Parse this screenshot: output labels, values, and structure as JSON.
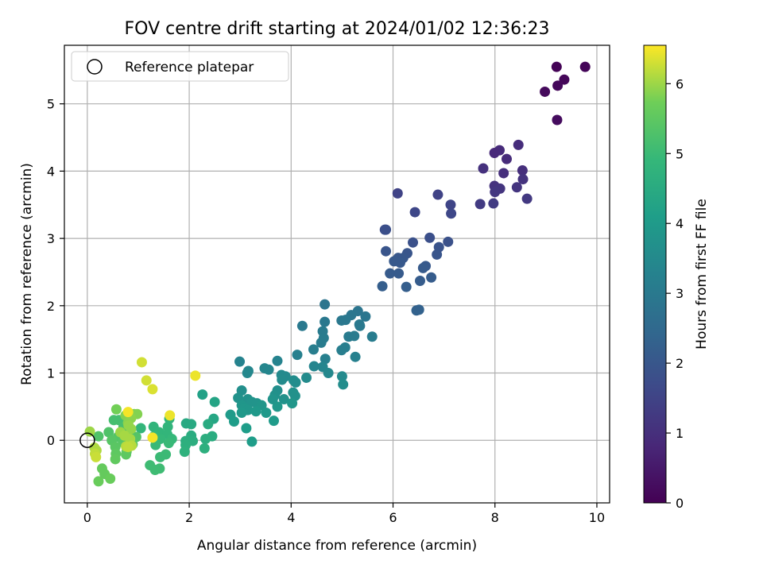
{
  "chart_data": {
    "type": "scatter",
    "title": "FOV centre drift starting at 2024/01/02 12:36:23",
    "xlabel": "Angular distance from reference (arcmin)",
    "ylabel": "Rotation from reference (arcmin)",
    "xlim": [
      -0.45,
      10.25
    ],
    "ylim": [
      -0.93,
      5.87
    ],
    "xticks": [
      "0",
      "2",
      "4",
      "6",
      "8",
      "10"
    ],
    "yticks": [
      "0",
      "1",
      "2",
      "3",
      "4",
      "5"
    ],
    "grid": true,
    "legend": {
      "placement": "top-left",
      "entries": [
        "Reference platepar"
      ]
    },
    "reference_point": {
      "x": 0,
      "y": 0
    },
    "colorbar": {
      "label": "Hours from first FF file",
      "range": [
        0,
        6.55
      ],
      "ticks": [
        "0",
        "1",
        "2",
        "3",
        "4",
        "5",
        "6"
      ],
      "colormap": "viridis"
    },
    "points": [
      {
        "x": 9.21,
        "y": 5.55,
        "c": 0.05
      },
      {
        "x": 9.77,
        "y": 5.55,
        "c": 0.08
      },
      {
        "x": 9.36,
        "y": 5.36,
        "c": 0.12
      },
      {
        "x": 9.23,
        "y": 5.27,
        "c": 0.15
      },
      {
        "x": 8.98,
        "y": 5.18,
        "c": 0.18
      },
      {
        "x": 9.22,
        "y": 4.76,
        "c": 0.22
      },
      {
        "x": 8.46,
        "y": 4.39,
        "c": 0.95
      },
      {
        "x": 8.09,
        "y": 4.31,
        "c": 0.9
      },
      {
        "x": 7.99,
        "y": 4.27,
        "c": 0.85
      },
      {
        "x": 8.23,
        "y": 4.18,
        "c": 0.92
      },
      {
        "x": 7.77,
        "y": 4.04,
        "c": 1.05
      },
      {
        "x": 8.54,
        "y": 4.01,
        "c": 1.0
      },
      {
        "x": 8.17,
        "y": 3.97,
        "c": 1.0
      },
      {
        "x": 8.55,
        "y": 3.88,
        "c": 1.1
      },
      {
        "x": 7.99,
        "y": 3.78,
        "c": 1.1
      },
      {
        "x": 8.1,
        "y": 3.74,
        "c": 1.15
      },
      {
        "x": 8.43,
        "y": 3.76,
        "c": 1.15
      },
      {
        "x": 8.0,
        "y": 3.69,
        "c": 1.2
      },
      {
        "x": 8.63,
        "y": 3.59,
        "c": 1.25
      },
      {
        "x": 7.97,
        "y": 3.52,
        "c": 1.3
      },
      {
        "x": 7.71,
        "y": 3.51,
        "c": 1.3
      },
      {
        "x": 6.09,
        "y": 3.67,
        "c": 1.5
      },
      {
        "x": 6.88,
        "y": 3.65,
        "c": 1.5
      },
      {
        "x": 7.13,
        "y": 3.5,
        "c": 1.55
      },
      {
        "x": 6.43,
        "y": 3.39,
        "c": 1.6
      },
      {
        "x": 7.14,
        "y": 3.37,
        "c": 1.6
      },
      {
        "x": 5.84,
        "y": 3.13,
        "c": 1.75
      },
      {
        "x": 5.86,
        "y": 3.13,
        "c": 1.8
      },
      {
        "x": 6.72,
        "y": 3.01,
        "c": 1.8
      },
      {
        "x": 6.39,
        "y": 2.94,
        "c": 1.85
      },
      {
        "x": 7.08,
        "y": 2.95,
        "c": 1.85
      },
      {
        "x": 6.9,
        "y": 2.87,
        "c": 1.9
      },
      {
        "x": 5.86,
        "y": 2.81,
        "c": 1.95
      },
      {
        "x": 6.28,
        "y": 2.78,
        "c": 1.95
      },
      {
        "x": 6.86,
        "y": 2.76,
        "c": 1.95
      },
      {
        "x": 6.1,
        "y": 2.71,
        "c": 2.0
      },
      {
        "x": 6.2,
        "y": 2.71,
        "c": 2.0
      },
      {
        "x": 6.02,
        "y": 2.66,
        "c": 2.05
      },
      {
        "x": 6.14,
        "y": 2.64,
        "c": 2.05
      },
      {
        "x": 6.64,
        "y": 2.59,
        "c": 2.05
      },
      {
        "x": 6.59,
        "y": 2.56,
        "c": 2.1
      },
      {
        "x": 5.94,
        "y": 2.48,
        "c": 2.1
      },
      {
        "x": 6.11,
        "y": 2.48,
        "c": 2.1
      },
      {
        "x": 6.75,
        "y": 2.42,
        "c": 2.15
      },
      {
        "x": 6.53,
        "y": 2.37,
        "c": 2.15
      },
      {
        "x": 5.79,
        "y": 2.29,
        "c": 2.2
      },
      {
        "x": 6.26,
        "y": 2.28,
        "c": 2.2
      },
      {
        "x": 6.46,
        "y": 1.93,
        "c": 2.3
      },
      {
        "x": 6.51,
        "y": 1.94,
        "c": 2.3
      },
      {
        "x": 4.66,
        "y": 2.02,
        "c": 2.85
      },
      {
        "x": 5.31,
        "y": 1.92,
        "c": 2.85
      },
      {
        "x": 5.18,
        "y": 1.86,
        "c": 2.9
      },
      {
        "x": 5.46,
        "y": 1.84,
        "c": 2.9
      },
      {
        "x": 4.99,
        "y": 1.78,
        "c": 2.95
      },
      {
        "x": 4.66,
        "y": 1.76,
        "c": 2.95
      },
      {
        "x": 5.07,
        "y": 1.79,
        "c": 2.95
      },
      {
        "x": 5.34,
        "y": 1.72,
        "c": 3.0
      },
      {
        "x": 5.35,
        "y": 1.7,
        "c": 3.0
      },
      {
        "x": 4.22,
        "y": 1.7,
        "c": 3.0
      },
      {
        "x": 4.62,
        "y": 1.62,
        "c": 3.05
      },
      {
        "x": 5.13,
        "y": 1.54,
        "c": 3.05
      },
      {
        "x": 5.24,
        "y": 1.55,
        "c": 3.05
      },
      {
        "x": 5.59,
        "y": 1.54,
        "c": 3.1
      },
      {
        "x": 4.64,
        "y": 1.52,
        "c": 3.1
      },
      {
        "x": 4.59,
        "y": 1.45,
        "c": 3.1
      },
      {
        "x": 5.06,
        "y": 1.38,
        "c": 3.15
      },
      {
        "x": 4.44,
        "y": 1.35,
        "c": 3.15
      },
      {
        "x": 4.99,
        "y": 1.34,
        "c": 3.15
      },
      {
        "x": 4.12,
        "y": 1.27,
        "c": 3.2
      },
      {
        "x": 5.26,
        "y": 1.24,
        "c": 3.2
      },
      {
        "x": 4.67,
        "y": 1.21,
        "c": 3.2
      },
      {
        "x": 3.73,
        "y": 1.18,
        "c": 3.3
      },
      {
        "x": 2.99,
        "y": 1.17,
        "c": 3.3
      },
      {
        "x": 4.45,
        "y": 1.1,
        "c": 3.35
      },
      {
        "x": 4.62,
        "y": 1.09,
        "c": 3.35
      },
      {
        "x": 3.48,
        "y": 1.07,
        "c": 3.4
      },
      {
        "x": 3.56,
        "y": 1.05,
        "c": 3.4
      },
      {
        "x": 3.16,
        "y": 1.03,
        "c": 3.4
      },
      {
        "x": 3.14,
        "y": 1.0,
        "c": 3.45
      },
      {
        "x": 4.73,
        "y": 1.0,
        "c": 3.45
      },
      {
        "x": 3.81,
        "y": 0.97,
        "c": 3.5
      },
      {
        "x": 3.89,
        "y": 0.95,
        "c": 3.5
      },
      {
        "x": 5.0,
        "y": 0.95,
        "c": 3.5
      },
      {
        "x": 4.3,
        "y": 0.93,
        "c": 3.55
      },
      {
        "x": 3.82,
        "y": 0.9,
        "c": 3.55
      },
      {
        "x": 4.05,
        "y": 0.89,
        "c": 3.6
      },
      {
        "x": 4.09,
        "y": 0.86,
        "c": 3.6
      },
      {
        "x": 5.02,
        "y": 0.83,
        "c": 3.6
      },
      {
        "x": 3.03,
        "y": 0.74,
        "c": 3.65
      },
      {
        "x": 3.73,
        "y": 0.74,
        "c": 3.65
      },
      {
        "x": 4.04,
        "y": 0.71,
        "c": 3.7
      },
      {
        "x": 3.68,
        "y": 0.67,
        "c": 3.7
      },
      {
        "x": 4.08,
        "y": 0.66,
        "c": 3.7
      },
      {
        "x": 2.96,
        "y": 0.63,
        "c": 3.75
      },
      {
        "x": 3.15,
        "y": 0.61,
        "c": 3.75
      },
      {
        "x": 3.86,
        "y": 0.61,
        "c": 3.75
      },
      {
        "x": 3.64,
        "y": 0.61,
        "c": 3.8
      },
      {
        "x": 3.23,
        "y": 0.57,
        "c": 3.8
      },
      {
        "x": 3.33,
        "y": 0.55,
        "c": 3.8
      },
      {
        "x": 4.02,
        "y": 0.55,
        "c": 3.85
      },
      {
        "x": 3.42,
        "y": 0.52,
        "c": 3.85
      },
      {
        "x": 3.03,
        "y": 0.52,
        "c": 3.85
      },
      {
        "x": 3.73,
        "y": 0.5,
        "c": 3.9
      },
      {
        "x": 3.08,
        "y": 0.48,
        "c": 3.9
      },
      {
        "x": 3.15,
        "y": 0.45,
        "c": 3.9
      },
      {
        "x": 3.31,
        "y": 0.43,
        "c": 3.95
      },
      {
        "x": 3.51,
        "y": 0.41,
        "c": 3.95
      },
      {
        "x": 3.03,
        "y": 0.41,
        "c": 3.95
      },
      {
        "x": 2.81,
        "y": 0.38,
        "c": 4.0
      },
      {
        "x": 3.66,
        "y": 0.29,
        "c": 4.0
      },
      {
        "x": 2.88,
        "y": 0.28,
        "c": 4.05
      },
      {
        "x": 3.12,
        "y": 0.18,
        "c": 4.05
      },
      {
        "x": 3.23,
        "y": -0.02,
        "c": 4.05
      },
      {
        "x": 2.26,
        "y": 0.68,
        "c": 4.2
      },
      {
        "x": 2.5,
        "y": 0.57,
        "c": 4.3
      },
      {
        "x": 2.48,
        "y": 0.32,
        "c": 4.35
      },
      {
        "x": 1.94,
        "y": 0.25,
        "c": 4.45
      },
      {
        "x": 2.04,
        "y": 0.24,
        "c": 4.45
      },
      {
        "x": 2.37,
        "y": 0.24,
        "c": 4.5
      },
      {
        "x": 2.04,
        "y": 0.07,
        "c": 4.55
      },
      {
        "x": 2.45,
        "y": 0.06,
        "c": 4.55
      },
      {
        "x": 2.32,
        "y": 0.02,
        "c": 4.6
      },
      {
        "x": 1.93,
        "y": -0.01,
        "c": 4.6
      },
      {
        "x": 2.07,
        "y": -0.01,
        "c": 4.6
      },
      {
        "x": 1.93,
        "y": -0.07,
        "c": 4.65
      },
      {
        "x": 2.3,
        "y": -0.12,
        "c": 4.65
      },
      {
        "x": 1.91,
        "y": -0.17,
        "c": 4.7
      },
      {
        "x": 1.61,
        "y": 0.32,
        "c": 4.75
      },
      {
        "x": 1.3,
        "y": 0.2,
        "c": 4.8
      },
      {
        "x": 1.58,
        "y": 0.2,
        "c": 4.8
      },
      {
        "x": 1.05,
        "y": 0.18,
        "c": 4.85
      },
      {
        "x": 1.41,
        "y": 0.12,
        "c": 4.85
      },
      {
        "x": 1.57,
        "y": 0.09,
        "c": 4.85
      },
      {
        "x": 1.31,
        "y": 0.06,
        "c": 4.9
      },
      {
        "x": 1.43,
        "y": 0.02,
        "c": 4.9
      },
      {
        "x": 1.66,
        "y": 0.02,
        "c": 4.9
      },
      {
        "x": 1.6,
        "y": -0.04,
        "c": 4.95
      },
      {
        "x": 1.34,
        "y": -0.07,
        "c": 4.95
      },
      {
        "x": 1.54,
        "y": -0.21,
        "c": 5.0
      },
      {
        "x": 1.43,
        "y": -0.25,
        "c": 5.0
      },
      {
        "x": 1.23,
        "y": -0.37,
        "c": 5.05
      },
      {
        "x": 1.42,
        "y": -0.42,
        "c": 5.05
      },
      {
        "x": 1.33,
        "y": -0.44,
        "c": 5.05
      },
      {
        "x": 0.62,
        "y": 0.3,
        "c": 5.15
      },
      {
        "x": 0.52,
        "y": 0.3,
        "c": 5.15
      },
      {
        "x": 0.71,
        "y": 0.2,
        "c": 5.2
      },
      {
        "x": 0.22,
        "y": 0.06,
        "c": 5.3
      },
      {
        "x": 0.42,
        "y": 0.12,
        "c": 5.3
      },
      {
        "x": 0.6,
        "y": 0.05,
        "c": 5.35
      },
      {
        "x": 0.82,
        "y": 0.05,
        "c": 5.35
      },
      {
        "x": 0.96,
        "y": 0.05,
        "c": 5.35
      },
      {
        "x": 0.48,
        "y": 0.0,
        "c": 5.4
      },
      {
        "x": 0.7,
        "y": -0.03,
        "c": 5.4
      },
      {
        "x": 0.89,
        "y": -0.06,
        "c": 5.45
      },
      {
        "x": 0.55,
        "y": -0.1,
        "c": 5.45
      },
      {
        "x": 0.77,
        "y": -0.17,
        "c": 5.5
      },
      {
        "x": 0.56,
        "y": -0.2,
        "c": 5.5
      },
      {
        "x": 0.76,
        "y": -0.21,
        "c": 5.5
      },
      {
        "x": 0.55,
        "y": -0.28,
        "c": 5.55
      },
      {
        "x": 0.29,
        "y": -0.42,
        "c": 5.6
      },
      {
        "x": 0.34,
        "y": -0.5,
        "c": 5.6
      },
      {
        "x": 0.45,
        "y": -0.57,
        "c": 5.65
      },
      {
        "x": 0.22,
        "y": -0.61,
        "c": 5.65
      },
      {
        "x": 0.57,
        "y": 0.46,
        "c": 5.75
      },
      {
        "x": 0.81,
        "y": 0.41,
        "c": 5.8
      },
      {
        "x": 0.92,
        "y": 0.39,
        "c": 5.8
      },
      {
        "x": 0.98,
        "y": 0.39,
        "c": 5.85
      },
      {
        "x": 0.75,
        "y": 0.37,
        "c": 5.85
      },
      {
        "x": 0.86,
        "y": 0.33,
        "c": 5.9
      },
      {
        "x": 0.8,
        "y": 0.26,
        "c": 5.9
      },
      {
        "x": 0.81,
        "y": 0.22,
        "c": 5.95
      },
      {
        "x": 0.86,
        "y": 0.17,
        "c": 5.95
      },
      {
        "x": 0.65,
        "y": 0.12,
        "c": 6.0
      },
      {
        "x": 0.05,
        "y": 0.13,
        "c": 6.0
      },
      {
        "x": 0.73,
        "y": 0.07,
        "c": 6.05
      },
      {
        "x": 0.84,
        "y": 0.02,
        "c": 6.05
      },
      {
        "x": 0.14,
        "y": -0.11,
        "c": 6.1
      },
      {
        "x": 0.18,
        "y": -0.15,
        "c": 6.1
      },
      {
        "x": 0.76,
        "y": -0.09,
        "c": 6.15
      },
      {
        "x": 0.87,
        "y": -0.08,
        "c": 6.15
      },
      {
        "x": 0.8,
        "y": -0.1,
        "c": 6.2
      },
      {
        "x": 0.15,
        "y": -0.2,
        "c": 6.2
      },
      {
        "x": 0.17,
        "y": -0.25,
        "c": 6.25
      },
      {
        "x": 1.07,
        "y": 1.16,
        "c": 6.3
      },
      {
        "x": 1.16,
        "y": 0.89,
        "c": 6.3
      },
      {
        "x": 1.28,
        "y": 0.76,
        "c": 6.35
      },
      {
        "x": 2.12,
        "y": 0.96,
        "c": 6.45
      },
      {
        "x": 1.62,
        "y": 0.37,
        "c": 6.45
      },
      {
        "x": 0.8,
        "y": 0.42,
        "c": 6.5
      },
      {
        "x": 1.28,
        "y": 0.04,
        "c": 6.5
      }
    ]
  }
}
